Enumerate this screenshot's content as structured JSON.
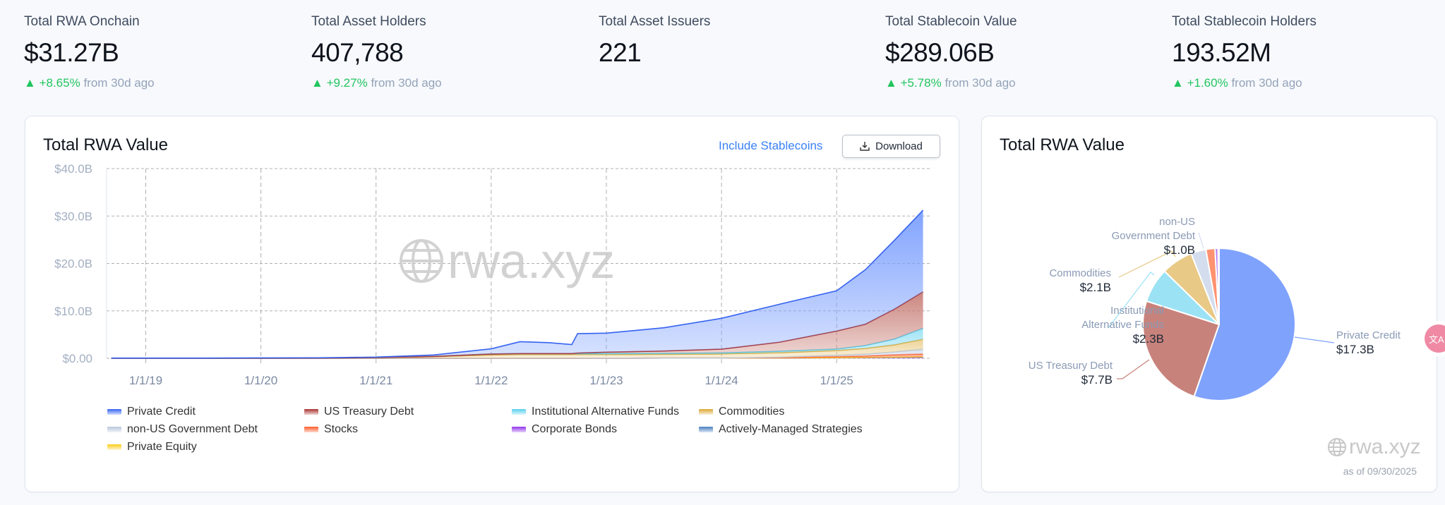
{
  "stats": [
    {
      "label": "Total RWA Onchain",
      "value": "$31.27B",
      "change": "+8.65%",
      "suffix": "from 30d ago"
    },
    {
      "label": "Total Asset Holders",
      "value": "407,788",
      "change": "+9.27%",
      "suffix": "from 30d ago"
    },
    {
      "label": "Total Asset Issuers",
      "value": "221"
    },
    {
      "label": "Total Stablecoin Value",
      "value": "$289.06B",
      "change": "+5.78%",
      "suffix": "from 30d ago"
    },
    {
      "label": "Total Stablecoin Holders",
      "value": "193.52M",
      "change": "+1.60%",
      "suffix": "from 30d ago"
    }
  ],
  "area_card": {
    "title": "Total RWA Value",
    "include_stablecoins": "Include Stablecoins",
    "download": "Download",
    "watermark": "rwa.xyz"
  },
  "pie_card": {
    "title": "Total RWA Value",
    "watermark": "rwa.xyz",
    "as_of": "as of 09/30/2025"
  },
  "colors": {
    "accent": "#3b82f6",
    "up": "#22c55e"
  },
  "chart_data": [
    {
      "type": "area",
      "title": "Total RWA Value",
      "xlabel": "",
      "ylabel": "",
      "ylim": [
        0,
        40
      ],
      "xlim": [
        2018.66,
        2025.82
      ],
      "y_ticks": [
        "$0.00",
        "$10.0B",
        "$20.0B",
        "$30.0B",
        "$40.0B"
      ],
      "y_tick_values": [
        0,
        10,
        20,
        30,
        40
      ],
      "x_ticks": [
        "1/1/19",
        "1/1/20",
        "1/1/21",
        "1/1/22",
        "1/1/23",
        "1/1/24",
        "1/1/25"
      ],
      "x_tick_values": [
        2019,
        2020,
        2021,
        2022,
        2023,
        2024,
        2025
      ],
      "grid": true,
      "legend": "bottom",
      "x": [
        2018.7,
        2019.0,
        2019.5,
        2020.0,
        2020.5,
        2021.0,
        2021.5,
        2022.0,
        2022.25,
        2022.5,
        2022.7,
        2022.75,
        2023.0,
        2023.5,
        2024.0,
        2024.5,
        2025.0,
        2025.25,
        2025.5,
        2025.75
      ],
      "series": [
        {
          "name": "Private Credit",
          "color": "#3563f0",
          "fill": "#7b9ffe",
          "values": [
            0.05,
            0.05,
            0.05,
            0.06,
            0.05,
            0.1,
            0.3,
            1.1,
            2.5,
            2.3,
            1.9,
            4.1,
            4.0,
            4.9,
            6.5,
            8.0,
            8.5,
            11.5,
            14.5,
            17.2
          ]
        },
        {
          "name": "US Treasury Debt",
          "color": "#a83232",
          "fill": "#c98079",
          "values": [
            0,
            0,
            0,
            0,
            0,
            0,
            0,
            0,
            0,
            0,
            0,
            0.1,
            0.3,
            0.5,
            0.8,
            1.9,
            3.8,
            4.5,
            6.3,
            7.7
          ]
        },
        {
          "name": "Institutional Alternative Funds",
          "color": "#56cfee",
          "fill": "#9be2f5",
          "values": [
            0,
            0,
            0,
            0,
            0,
            0.03,
            0.05,
            0.2,
            0.2,
            0.2,
            0.2,
            0.2,
            0.2,
            0.2,
            0.2,
            0.3,
            0.3,
            0.6,
            1.2,
            2.3
          ]
        },
        {
          "name": "Commodities",
          "color": "#d9a630",
          "fill": "#ecd090",
          "values": [
            0,
            0,
            0,
            0.02,
            0.05,
            0.12,
            0.35,
            0.7,
            0.8,
            0.8,
            0.8,
            0.78,
            0.77,
            0.8,
            0.88,
            0.95,
            1.0,
            1.2,
            1.5,
            2.1
          ]
        },
        {
          "name": "non-US Government Debt",
          "color": "#b9c8dc",
          "fill": "#d3dded",
          "values": [
            0,
            0,
            0,
            0,
            0,
            0,
            0,
            0,
            0,
            0,
            0,
            0,
            0,
            0,
            0,
            0.1,
            0.3,
            0.4,
            0.6,
            1.0
          ]
        },
        {
          "name": "Stocks",
          "color": "#ff5a2a",
          "fill": "#ff9270",
          "values": [
            0,
            0,
            0,
            0,
            0,
            0,
            0,
            0,
            0,
            0,
            0,
            0,
            0,
            0,
            0,
            0.05,
            0.2,
            0.3,
            0.5,
            0.6
          ]
        },
        {
          "name": "Corporate Bonds",
          "color": "#9333ea",
          "fill": "#b57af3",
          "values": [
            0,
            0,
            0,
            0,
            0,
            0,
            0,
            0,
            0,
            0,
            0,
            0.02,
            0.03,
            0.04,
            0.05,
            0.08,
            0.1,
            0.12,
            0.15,
            0.2
          ]
        },
        {
          "name": "Actively-Managed Strategies",
          "color": "#4a7fc0",
          "fill": "#8bb0dd",
          "values": [
            0,
            0,
            0,
            0,
            0,
            0,
            0,
            0,
            0,
            0,
            0,
            0,
            0,
            0,
            0,
            0,
            0.03,
            0.05,
            0.06,
            0.07
          ]
        },
        {
          "name": "Private Equity",
          "color": "#facc15",
          "fill": "#fde68a",
          "values": [
            0,
            0,
            0,
            0,
            0,
            0,
            0,
            0,
            0,
            0,
            0,
            0,
            0,
            0,
            0,
            0,
            0.01,
            0.02,
            0.03,
            0.05
          ]
        }
      ]
    },
    {
      "type": "pie",
      "title": "Total RWA Value",
      "slices": [
        {
          "name": "Private Credit",
          "value": 17.3,
          "label": "$17.3B",
          "color": "#7fa2fd"
        },
        {
          "name": "US Treasury Debt",
          "value": 7.7,
          "label": "$7.7B",
          "color": "#c8827c"
        },
        {
          "name": "Institutional Alternative Funds",
          "value": 2.3,
          "label": "$2.3B",
          "color": "#9be2f5"
        },
        {
          "name": "Commodities",
          "value": 2.1,
          "label": "$2.1B",
          "color": "#e8c985"
        },
        {
          "name": "non-US Government Debt",
          "value": 1.0,
          "label": "$1.0B",
          "color": "#d3dded"
        },
        {
          "name": "Stocks",
          "value": 0.6,
          "color": "#ff9270"
        },
        {
          "name": "Corporate Bonds",
          "value": 0.2,
          "color": "#b57af3"
        },
        {
          "name": "Actively-Managed Strategies",
          "value": 0.07,
          "color": "#8bb0dd"
        }
      ],
      "label_lines": {
        "pc_name": "Private Credit",
        "ust_name": "US Treasury Debt",
        "iaf_name_1": "Institutional",
        "iaf_name_2": "Alternative Funds",
        "com_name": "Commodities",
        "nus_name_1": "non-US",
        "nus_name_2": "Government Debt"
      }
    }
  ]
}
